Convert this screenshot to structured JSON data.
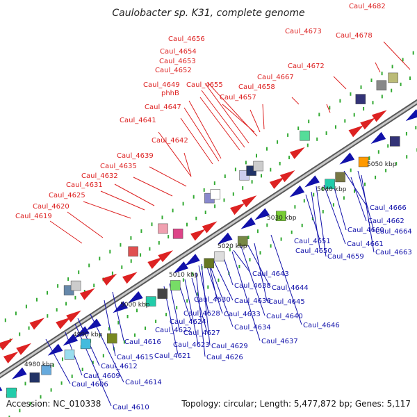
{
  "title": "Caulobacter sp. K31, complete genome",
  "accession_text": "Accession: NC_010338",
  "topology_text": "Topology: circular; Length: 5,477,872 bp; Genes: 5,117",
  "colors": {
    "top_strand": "#dd2222",
    "bottom_strand": "#1111aa",
    "backbone": "#888888",
    "tick": "#33aa33"
  },
  "kbp_marks": [
    "4980 kbp",
    "4990 kbp",
    "5000 kbp",
    "5010 kbp",
    "5020 kbp",
    "5030 kbp",
    "5040 kbp",
    "5050 kbp"
  ],
  "top_labels": [
    "Caul_4682",
    "Caul_4656",
    "Caul_4673",
    "Caul_4678",
    "Caul_4654",
    "Caul_4653",
    "Caul_4652",
    "Caul_4672",
    "Caul_4667",
    "Caul_4649",
    "Caul_4655",
    "Caul_4658",
    "phhB",
    "Caul_4657",
    "Caul_4647",
    "Caul_4641",
    "Caul_4642",
    "Caul_4639",
    "Caul_4635",
    "Caul_4632",
    "Caul_4631",
    "Caul_4625",
    "Caul_4620",
    "Caul_4619"
  ],
  "bottom_labels": [
    "Caul_4666",
    "Caul_4662",
    "Caul_4664",
    "Caul_4660",
    "Caul_4661",
    "Caul_4663",
    "Caul_4651",
    "Caul_4650",
    "Caul_4659",
    "Caul_4643",
    "Caul_4638",
    "Caul_4644",
    "Caul_4630",
    "Caul_4636",
    "Caul_4645",
    "Caul_4628",
    "Caul_4633",
    "Caul_4640",
    "Caul_4622",
    "Caul_4624",
    "Caul_4634",
    "Caul_4646",
    "Caul_4627",
    "Caul_4637",
    "Caul_4616",
    "Caul_4623",
    "Caul_4629",
    "Caul_4615",
    "Caul_4621",
    "Caul_4626",
    "Caul_4612",
    "Caul_4609",
    "Caul_4614",
    "Caul_4606",
    "Caul_4610"
  ]
}
